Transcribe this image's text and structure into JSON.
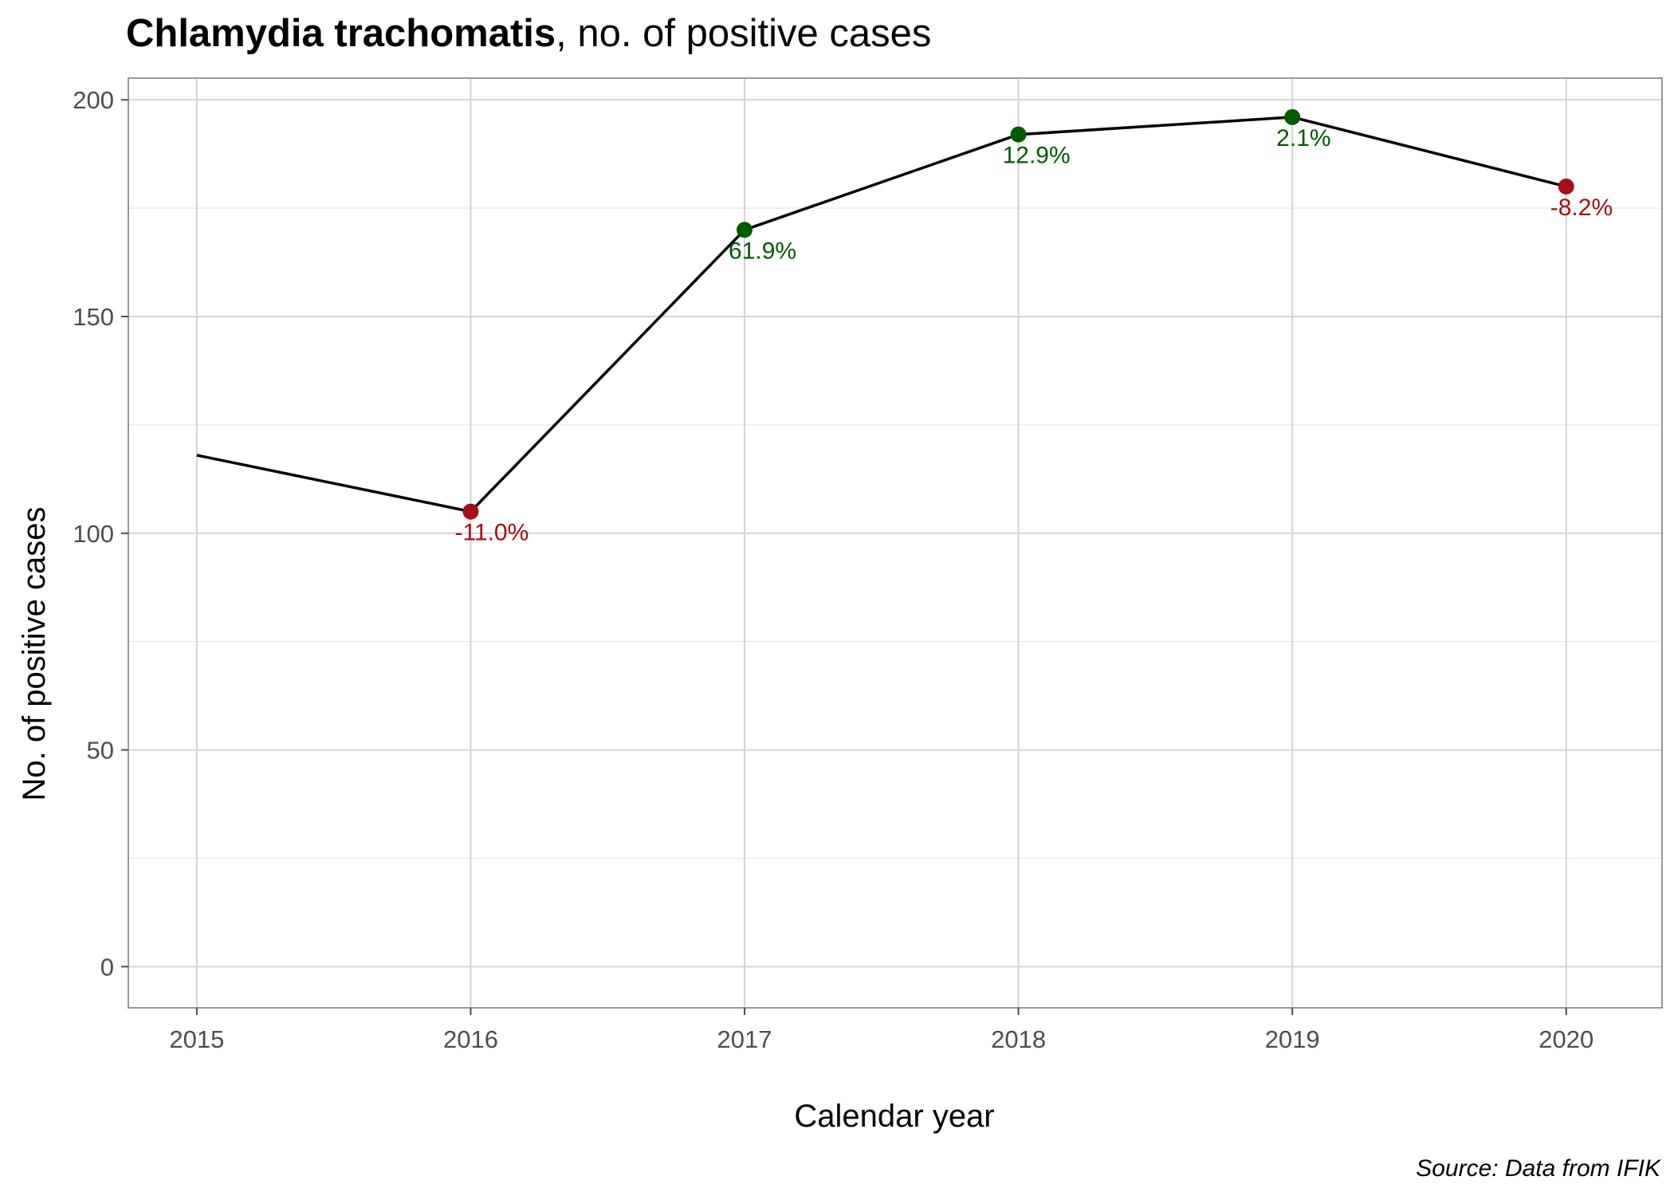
{
  "chart_data": {
    "type": "line",
    "title_bold": "Chlamydia trachomatis",
    "title_rest": ", no. of positive cases",
    "xlabel": "Calendar year",
    "ylabel": "No. of positive cases",
    "caption": "Source: Data from IFIK",
    "x": [
      2015,
      2016,
      2017,
      2018,
      2019,
      2020
    ],
    "x_ticks": [
      "2015",
      "2016",
      "2017",
      "2018",
      "2019",
      "2020"
    ],
    "y_ticks": [
      0,
      50,
      100,
      150,
      200
    ],
    "xlim": [
      2014.75,
      2020.35
    ],
    "ylim": [
      -9.5,
      205
    ],
    "grid": true,
    "series": [
      {
        "values": [
          118,
          105,
          170,
          192,
          196,
          180
        ],
        "line_color": "#000000",
        "markers": [
          false,
          true,
          true,
          true,
          true,
          true
        ],
        "labels": [
          "",
          "-11.0%",
          "61.9%",
          "12.9%",
          "2.1%",
          "-8.2%"
        ],
        "label_colors": [
          "",
          "#a50f15",
          "#005a00",
          "#005a00",
          "#005a00",
          "#a50f15"
        ]
      }
    ],
    "colors": {
      "increase": "#005a00",
      "decrease": "#a50f15",
      "panel_border": "#999999",
      "grid_major": "#d3d3d3",
      "grid_minor": "#ebebeb"
    }
  }
}
